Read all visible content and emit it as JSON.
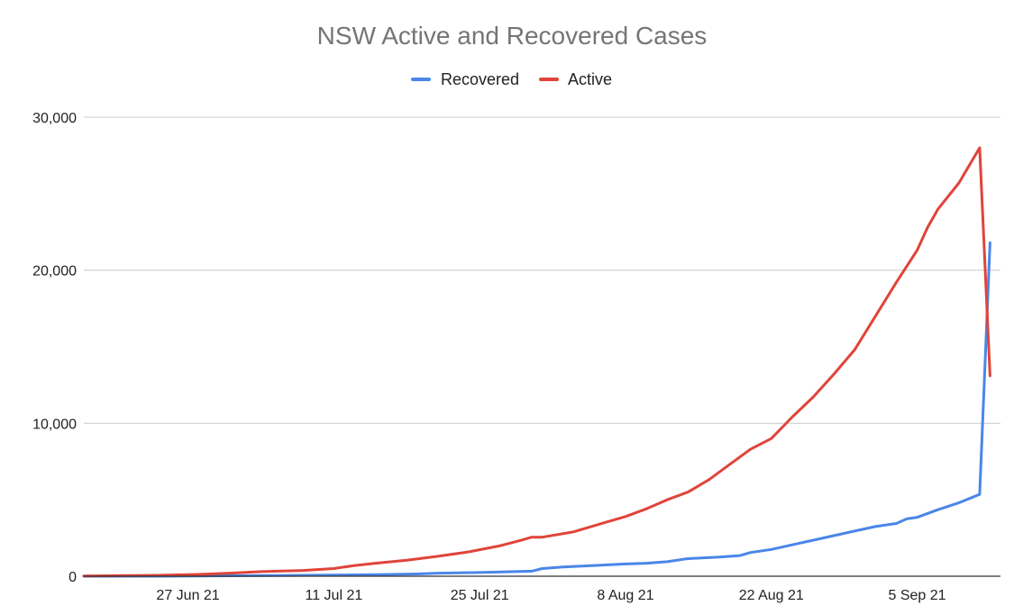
{
  "chart_data": {
    "type": "line",
    "title": "NSW Active and Recovered Cases",
    "xlabel": "",
    "ylabel": "",
    "ylim": [
      0,
      30000
    ],
    "yticks": [
      0,
      10000,
      20000,
      30000
    ],
    "ytick_labels": [
      "0",
      "10,000",
      "20,000",
      "30,000"
    ],
    "x_start": "2021-06-17",
    "x_end": "2021-09-13",
    "xticks": [
      "2021-06-27",
      "2021-07-11",
      "2021-07-25",
      "2021-08-08",
      "2021-08-22",
      "2021-09-05"
    ],
    "xtick_labels": [
      "27 Jun 21",
      "11 Jul 21",
      "25 Jul 21",
      "8 Aug 21",
      "22 Aug 21",
      "5 Sep 21"
    ],
    "grid": true,
    "legend_position": "top-center",
    "series": [
      {
        "name": "Recovered",
        "color": "#4a86e8",
        "points": [
          [
            "2021-06-17",
            0
          ],
          [
            "2021-06-24",
            0
          ],
          [
            "2021-07-01",
            30
          ],
          [
            "2021-07-08",
            60
          ],
          [
            "2021-07-15",
            100
          ],
          [
            "2021-07-19",
            150
          ],
          [
            "2021-07-21",
            200
          ],
          [
            "2021-07-25",
            240
          ],
          [
            "2021-07-30",
            330
          ],
          [
            "2021-07-31",
            500
          ],
          [
            "2021-08-02",
            600
          ],
          [
            "2021-08-05",
            700
          ],
          [
            "2021-08-08",
            800
          ],
          [
            "2021-08-10",
            850
          ],
          [
            "2021-08-12",
            950
          ],
          [
            "2021-08-14",
            1150
          ],
          [
            "2021-08-17",
            1250
          ],
          [
            "2021-08-19",
            1350
          ],
          [
            "2021-08-20",
            1550
          ],
          [
            "2021-08-22",
            1750
          ],
          [
            "2021-08-24",
            2050
          ],
          [
            "2021-08-26",
            2350
          ],
          [
            "2021-08-28",
            2650
          ],
          [
            "2021-08-30",
            2950
          ],
          [
            "2021-09-01",
            3250
          ],
          [
            "2021-09-03",
            3450
          ],
          [
            "2021-09-04",
            3750
          ],
          [
            "2021-09-05",
            3850
          ],
          [
            "2021-09-07",
            4350
          ],
          [
            "2021-09-09",
            4800
          ],
          [
            "2021-09-11",
            5350
          ],
          [
            "2021-09-12",
            21800
          ]
        ]
      },
      {
        "name": "Active",
        "color": "#e0443a",
        "points": [
          [
            "2021-06-17",
            20
          ],
          [
            "2021-06-24",
            60
          ],
          [
            "2021-06-28",
            120
          ],
          [
            "2021-07-01",
            200
          ],
          [
            "2021-07-04",
            300
          ],
          [
            "2021-07-08",
            380
          ],
          [
            "2021-07-11",
            500
          ],
          [
            "2021-07-13",
            700
          ],
          [
            "2021-07-15",
            850
          ],
          [
            "2021-07-18",
            1050
          ],
          [
            "2021-07-21",
            1300
          ],
          [
            "2021-07-24",
            1600
          ],
          [
            "2021-07-27",
            2000
          ],
          [
            "2021-07-29",
            2350
          ],
          [
            "2021-07-30",
            2550
          ],
          [
            "2021-07-31",
            2550
          ],
          [
            "2021-08-03",
            2900
          ],
          [
            "2021-08-06",
            3500
          ],
          [
            "2021-08-08",
            3900
          ],
          [
            "2021-08-10",
            4400
          ],
          [
            "2021-08-12",
            5000
          ],
          [
            "2021-08-14",
            5500
          ],
          [
            "2021-08-16",
            6300
          ],
          [
            "2021-08-18",
            7300
          ],
          [
            "2021-08-20",
            8300
          ],
          [
            "2021-08-22",
            9000
          ],
          [
            "2021-08-24",
            10400
          ],
          [
            "2021-08-26",
            11700
          ],
          [
            "2021-08-28",
            13200
          ],
          [
            "2021-08-30",
            14800
          ],
          [
            "2021-09-01",
            17000
          ],
          [
            "2021-09-03",
            19200
          ],
          [
            "2021-09-05",
            21300
          ],
          [
            "2021-09-06",
            22800
          ],
          [
            "2021-09-07",
            24000
          ],
          [
            "2021-09-09",
            25700
          ],
          [
            "2021-09-11",
            28000
          ],
          [
            "2021-09-12",
            13100
          ]
        ]
      }
    ]
  }
}
